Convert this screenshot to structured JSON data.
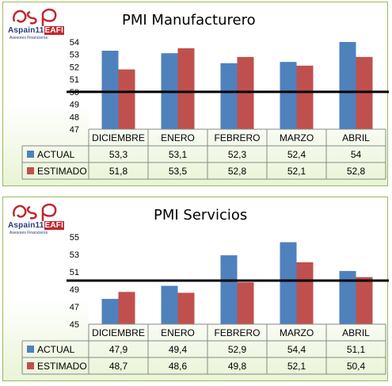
{
  "logo": {
    "brand": "Aspain11",
    "brand_suffix": "EAFI",
    "subtitle": "Asesores Financieros"
  },
  "colors": {
    "actual": "#4f81bd",
    "estimado": "#c0504d",
    "border": "#9bbb59"
  },
  "chart_data": [
    {
      "type": "bar",
      "title": "PMI Manufacturero",
      "categories": [
        "DICIEMBRE",
        "ENERO",
        "FEBRERO",
        "MARZO",
        "ABRIL"
      ],
      "series": [
        {
          "name": "ACTUAL",
          "values": [
            53.3,
            53.1,
            52.3,
            52.4,
            54
          ],
          "labels": [
            "53,3",
            "53,1",
            "52,3",
            "52,4",
            "54"
          ]
        },
        {
          "name": "ESTIMADO",
          "values": [
            51.8,
            53.5,
            52.8,
            52.1,
            52.8
          ],
          "labels": [
            "51,8",
            "53,5",
            "52,8",
            "52,1",
            "52,8"
          ]
        }
      ],
      "ylim": [
        47,
        54
      ],
      "yticks": [
        47,
        48,
        49,
        50,
        51,
        52,
        53,
        54
      ],
      "reference_line": 50,
      "legend": "data-table"
    },
    {
      "type": "bar",
      "title": "PMI Servicios",
      "categories": [
        "DICIEMBRE",
        "ENERO",
        "FEBRERO",
        "MARZO",
        "ABRIL"
      ],
      "series": [
        {
          "name": "ACTUAL",
          "values": [
            47.9,
            49.4,
            52.9,
            54.4,
            51.1
          ],
          "labels": [
            "47,9",
            "49,4",
            "52,9",
            "54,4",
            "51,1"
          ]
        },
        {
          "name": "ESTIMADO",
          "values": [
            48.7,
            48.6,
            49.8,
            52.1,
            50.4
          ],
          "labels": [
            "48,7",
            "48,6",
            "49,8",
            "52,1",
            "50,4"
          ]
        }
      ],
      "ylim": [
        45,
        55
      ],
      "yticks": [
        45,
        47,
        49,
        51,
        53,
        55
      ],
      "reference_line": 50,
      "legend": "data-table"
    }
  ]
}
